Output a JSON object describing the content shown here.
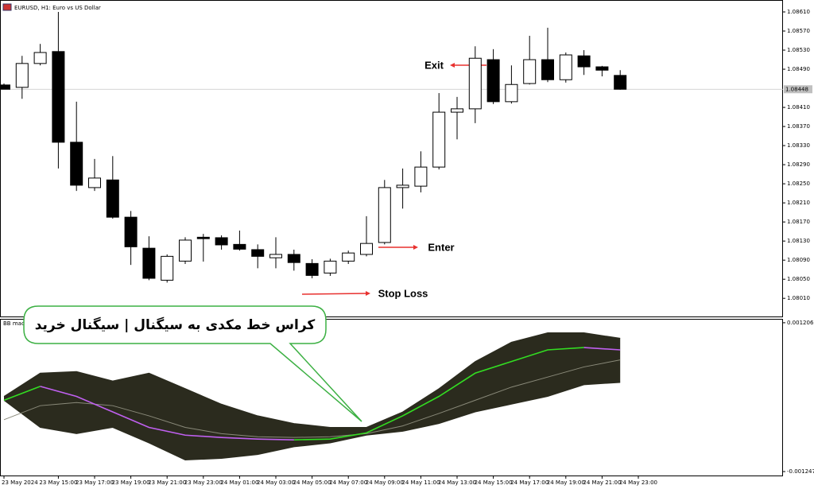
{
  "header": {
    "title": "EURUSD, H1:  Euro vs US Dollar"
  },
  "chart_data": [
    {
      "type": "candlestick",
      "x_labels": [
        "23 May 2024",
        "23 May 15:00",
        "23 May 17:00",
        "23 May 19:00",
        "23 May 21:00",
        "23 May 23:00",
        "24 May 01:00",
        "24 May 03:00",
        "24 May 05:00",
        "24 May 07:00",
        "24 May 09:00",
        "24 May 11:00",
        "24 May 13:00",
        "24 May 15:00",
        "24 May 17:00",
        "24 May 19:00",
        "24 May 21:00",
        "24 May 23:00"
      ],
      "open": [
        1.08457,
        1.08452,
        1.08502,
        1.08527,
        1.08337,
        1.08242,
        1.08258,
        1.0818,
        1.08115,
        1.08048,
        1.08088,
        1.08138,
        1.08137,
        1.08123,
        1.08112,
        1.08095,
        1.08102,
        1.08083,
        1.08063,
        1.08088,
        1.08102,
        1.08127,
        1.08242,
        1.08245,
        1.08285,
        1.084,
        1.08407,
        1.0851,
        1.08422,
        1.0846,
        1.0851,
        1.08468,
        1.08518,
        1.08495,
        1.08477
      ],
      "high": [
        1.0846,
        1.08518,
        1.08543,
        1.0861,
        1.08422,
        1.08302,
        1.08308,
        1.08193,
        1.0814,
        1.08102,
        1.08138,
        1.08145,
        1.08142,
        1.08152,
        1.08123,
        1.08138,
        1.08112,
        1.08092,
        1.08093,
        1.0811,
        1.08182,
        1.08258,
        1.08282,
        1.08318,
        1.0844,
        1.08432,
        1.08538,
        1.08532,
        1.08498,
        1.0856,
        1.08577,
        1.08525,
        1.0853,
        1.08497,
        1.08488
      ],
      "low": [
        1.08448,
        1.08428,
        1.08498,
        1.08282,
        1.08235,
        1.08235,
        1.08177,
        1.0808,
        1.08048,
        1.08043,
        1.08082,
        1.08087,
        1.08112,
        1.0811,
        1.08073,
        1.08073,
        1.08068,
        1.08052,
        1.08057,
        1.08082,
        1.08098,
        1.08123,
        1.08198,
        1.08232,
        1.0828,
        1.08343,
        1.08377,
        1.08417,
        1.08418,
        1.08458,
        1.08463,
        1.08462,
        1.08478,
        1.08475,
        1.08447
      ],
      "close": [
        1.08448,
        1.08502,
        1.08525,
        1.08337,
        1.08247,
        1.08262,
        1.0818,
        1.08118,
        1.08052,
        1.08098,
        1.08132,
        1.08135,
        1.08122,
        1.08113,
        1.08098,
        1.08102,
        1.08085,
        1.08058,
        1.08088,
        1.08105,
        1.08125,
        1.08242,
        1.08247,
        1.08285,
        1.084,
        1.08407,
        1.08513,
        1.08422,
        1.08458,
        1.0851,
        1.08468,
        1.0852,
        1.08495,
        1.08488,
        1.08448
      ],
      "bull_color": "#ffffff",
      "bear_color": "#000000",
      "ylim": [
        1.07972,
        1.08635
      ],
      "yticks": [
        {
          "value": 1.0861,
          "label": "1.08610"
        },
        {
          "value": 1.0857,
          "label": "1.08570"
        },
        {
          "value": 1.0853,
          "label": "1.08530"
        },
        {
          "value": 1.0849,
          "label": "1.08490"
        },
        {
          "value": 1.0841,
          "label": "1.08410"
        },
        {
          "value": 1.0837,
          "label": "1.08370"
        },
        {
          "value": 1.0833,
          "label": "1.08330"
        },
        {
          "value": 1.0829,
          "label": "1.08290"
        },
        {
          "value": 1.0825,
          "label": "1.08250"
        },
        {
          "value": 1.0821,
          "label": "1.08210"
        },
        {
          "value": 1.0817,
          "label": "1.08170"
        },
        {
          "value": 1.0813,
          "label": "1.08130"
        },
        {
          "value": 1.0809,
          "label": "1.08090"
        },
        {
          "value": 1.0805,
          "label": "1.08050"
        },
        {
          "value": 1.0801,
          "label": "1.08010"
        }
      ],
      "current_price": 1.08448,
      "annotations": [
        {
          "text": "Exit",
          "color": "#1f3fbf"
        },
        {
          "text": "Enter",
          "color": "#1a9a2a"
        },
        {
          "text": "Stop Loss",
          "color": "#e8312f"
        }
      ]
    },
    {
      "type": "indicator",
      "title": "BB macd",
      "x": [
        0,
        2,
        4,
        6,
        8,
        10,
        12,
        14,
        16,
        18,
        20,
        22,
        24,
        26,
        28,
        30,
        32,
        34
      ],
      "band_color": "#2b2b1e",
      "series": [
        {
          "role": "upper",
          "color": "#2b2b1e",
          "values": [
            -8e-06,
            0.000375,
            0.000401,
            0.000247,
            0.000375,
            0.00012,
            -0.000136,
            -0.000328,
            -0.000455,
            -0.000519,
            -0.000519,
            -0.000264,
            0.00012,
            0.000567,
            0.000886,
            0.00104,
            0.00104,
            0.00095
          ]
        },
        {
          "role": "lower",
          "color": "#2b2b1e",
          "values": [
            -7.2e-05,
            -0.000519,
            -0.000622,
            -0.000519,
            -0.000775,
            -0.001056,
            -0.001031,
            -0.000967,
            -0.000839,
            -0.000775,
            -0.000647,
            -0.000583,
            -0.000455,
            -0.000264,
            -0.000136,
            -8e-06,
            0.000184,
            0.000222
          ]
        },
        {
          "role": "middle",
          "color": "#8a8a7a",
          "values": [
            -0.000392,
            -0.000161,
            -0.00011,
            -0.000161,
            -0.000328,
            -0.000519,
            -0.000622,
            -0.000673,
            -0.000685,
            -0.000673,
            -0.000622,
            -0.000494,
            -0.000289,
            -7.2e-05,
            0.000145,
            0.000311,
            0.000478,
            0.000593
          ]
        },
        {
          "role": "macd-up",
          "color": "#33dd22",
          "values": [
            -7.2e-05,
            0.000158,
            null,
            null,
            null,
            null,
            null,
            null,
            -0.000724,
            -0.000711,
            -0.000609,
            -0.000328,
            -8e-06,
            0.000375,
            0.000567,
            0.000759,
            0.000797,
            null
          ]
        },
        {
          "role": "macd-down",
          "color": "#c060f0",
          "values": [
            null,
            0.000158,
            -8e-06,
            -0.000264,
            -0.000519,
            -0.000647,
            -0.000685,
            -0.000711,
            -0.000724,
            null,
            null,
            null,
            null,
            null,
            null,
            null,
            0.000797,
            0.000759
          ]
        }
      ],
      "ylim": [
        -0.001312,
        0.001257
      ],
      "yticks": [
        0.001206,
        -0.001247
      ],
      "callout": "کراس خط مکدی به سیگنال | سیگنال خرید"
    }
  ]
}
